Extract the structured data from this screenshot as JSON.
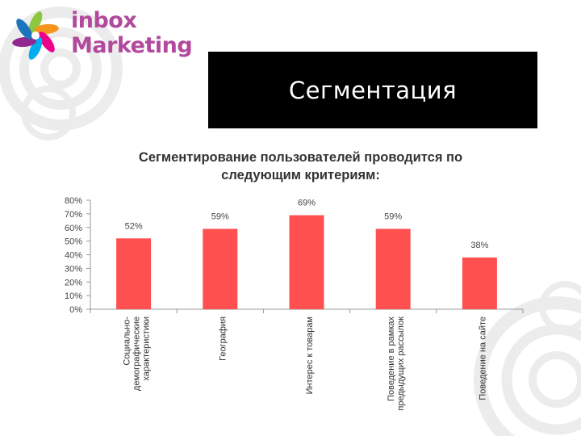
{
  "logo": {
    "line1": "inbox",
    "line2": "Marketing",
    "brand_color": "#b1499c",
    "star_colors": [
      "#8dc63f",
      "#f7941d",
      "#ec008c",
      "#00aeef",
      "#92278f",
      "#1c75bc"
    ]
  },
  "slide": {
    "title": "Сегментация"
  },
  "chart_data": {
    "type": "bar",
    "title_lines": [
      "Сегментирование пользователей проводится по",
      "следующим критериям:"
    ],
    "categories": [
      [
        "Социально-",
        "демографические",
        "характеристики"
      ],
      [
        "География"
      ],
      [
        "Интерес к товарам"
      ],
      [
        "Поведение в рамках",
        "предыдущих рассылок"
      ],
      [
        "Поведение на сайте"
      ]
    ],
    "values": [
      52,
      59,
      69,
      59,
      38
    ],
    "data_labels": [
      "52%",
      "59%",
      "69%",
      "59%",
      "38%"
    ],
    "y_ticks": [
      "0%",
      "10%",
      "20%",
      "30%",
      "40%",
      "50%",
      "60%",
      "70%",
      "80%"
    ],
    "ylim": [
      0,
      80
    ],
    "bar_color": "#ff5050",
    "grid": false,
    "legend": "none"
  }
}
